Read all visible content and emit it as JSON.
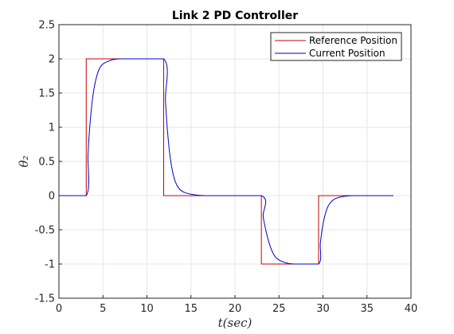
{
  "chart_data": {
    "type": "line",
    "title": "Link 2 PD Controller",
    "xlabel": "t(sec)",
    "ylabel": "θ₂",
    "xlim": [
      0,
      40
    ],
    "ylim": [
      -1.5,
      2.5
    ],
    "xticks": [
      "0",
      "5",
      "10",
      "15",
      "20",
      "25",
      "30",
      "35",
      "40"
    ],
    "yticks": [
      "2.5",
      "2",
      "1.5",
      "1",
      "0.5",
      "0",
      "-0.5",
      "-1",
      "-1.5"
    ],
    "grid": true,
    "legend_position": "top-right",
    "series": [
      {
        "name": "Reference Position",
        "color": "#cc0000",
        "style": "step",
        "points": [
          [
            0,
            0
          ],
          [
            3.1,
            0
          ],
          [
            3.1,
            2
          ],
          [
            11.9,
            2
          ],
          [
            11.9,
            0
          ],
          [
            23.0,
            0
          ],
          [
            23.0,
            -1
          ],
          [
            29.5,
            -1
          ],
          [
            29.5,
            0
          ],
          [
            38.0,
            0
          ]
        ]
      },
      {
        "name": "Current Position",
        "color": "#0000cc",
        "style": "smooth",
        "points": [
          [
            0,
            0
          ],
          [
            3.1,
            0
          ],
          [
            3.3,
            0.6
          ],
          [
            3.5,
            1.0
          ],
          [
            3.8,
            1.4
          ],
          [
            4.2,
            1.7
          ],
          [
            4.7,
            1.88
          ],
          [
            5.5,
            1.96
          ],
          [
            7.0,
            2.0
          ],
          [
            11.9,
            2.0
          ],
          [
            12.1,
            1.4
          ],
          [
            12.3,
            1.0
          ],
          [
            12.6,
            0.6
          ],
          [
            13.0,
            0.3
          ],
          [
            13.5,
            0.13
          ],
          [
            14.2,
            0.05
          ],
          [
            15.5,
            0.01
          ],
          [
            17.0,
            0.0
          ],
          [
            23.0,
            0.0
          ],
          [
            23.2,
            -0.3
          ],
          [
            23.5,
            -0.5
          ],
          [
            23.9,
            -0.7
          ],
          [
            24.4,
            -0.86
          ],
          [
            25.0,
            -0.94
          ],
          [
            26.0,
            -0.99
          ],
          [
            27.0,
            -1.0
          ],
          [
            29.5,
            -1.0
          ],
          [
            29.7,
            -0.7
          ],
          [
            29.9,
            -0.5
          ],
          [
            30.2,
            -0.3
          ],
          [
            30.6,
            -0.15
          ],
          [
            31.2,
            -0.06
          ],
          [
            32.0,
            -0.02
          ],
          [
            33.5,
            0.0
          ],
          [
            38.0,
            0.0
          ]
        ]
      }
    ]
  }
}
